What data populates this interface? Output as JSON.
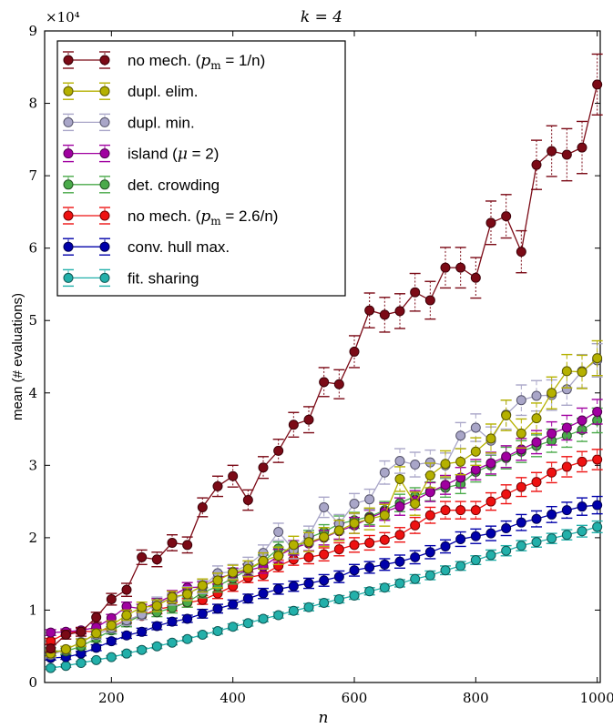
{
  "chart_data": {
    "type": "line",
    "title": "k = 4",
    "xlabel": "n",
    "ylabel": "mean (# evaluations)",
    "y_multiplier": "×10⁴",
    "xlim": [
      90,
      1005
    ],
    "ylim": [
      0,
      90000
    ],
    "x_ticks": [
      200,
      400,
      600,
      800,
      1000
    ],
    "y_ticks": [
      0,
      1,
      2,
      3,
      4,
      5,
      6,
      7,
      8,
      9
    ],
    "grid": false,
    "legend_position": "top-left",
    "x": [
      100,
      125,
      150,
      175,
      200,
      225,
      250,
      275,
      300,
      325,
      350,
      375,
      400,
      425,
      450,
      475,
      500,
      525,
      550,
      575,
      600,
      625,
      650,
      675,
      700,
      725,
      750,
      775,
      800,
      825,
      850,
      875,
      900,
      925,
      950,
      975,
      1000
    ],
    "series": [
      {
        "name": "no mech. (p_m = 1/n)",
        "legend_prefix": "no mech. (",
        "legend_math": "p",
        "legend_sub": "m",
        "legend_suffix": " = 1/n)",
        "color": "#7b0a16",
        "marker_edge": "#3d0008",
        "errbar": "dotted",
        "values": [
          4700,
          6600,
          7000,
          9000,
          11500,
          12800,
          17300,
          17000,
          19300,
          19000,
          24200,
          27100,
          28500,
          25200,
          29700,
          32000,
          35600,
          36300,
          41500,
          41200,
          45700,
          51400,
          50800,
          51300,
          53900,
          52800,
          57300,
          57300,
          55900,
          63500,
          64400,
          59500,
          71500,
          73400,
          72900,
          73900,
          82600
        ],
        "errors": [
          500,
          600,
          600,
          700,
          800,
          900,
          1000,
          1000,
          1100,
          1100,
          1300,
          1400,
          1500,
          1400,
          1500,
          1600,
          1700,
          1800,
          2000,
          2000,
          2200,
          2400,
          2400,
          2400,
          2600,
          2600,
          2800,
          2800,
          2800,
          3000,
          3000,
          2900,
          3400,
          3500,
          3600,
          3600,
          4200
        ]
      },
      {
        "name": "dupl. elim.",
        "legend_prefix": "dupl. elim.",
        "color": "#b5b100",
        "marker_edge": "#5a5800",
        "errbar": "dashed",
        "values": [
          4000,
          4600,
          5500,
          6800,
          7900,
          9300,
          10400,
          10600,
          11800,
          12200,
          13400,
          14100,
          15200,
          15700,
          16800,
          17500,
          19000,
          19400,
          20100,
          21000,
          22000,
          22600,
          23100,
          28100,
          24700,
          28600,
          30200,
          30500,
          31900,
          33700,
          36900,
          34400,
          36500,
          40000,
          43000,
          42900,
          44800
        ],
        "errors": [
          400,
          400,
          500,
          500,
          600,
          700,
          700,
          800,
          800,
          900,
          900,
          1000,
          1000,
          1100,
          1100,
          1200,
          1200,
          1300,
          1300,
          1400,
          1400,
          1500,
          1500,
          1700,
          1600,
          1700,
          1800,
          1800,
          1900,
          2000,
          2100,
          2000,
          2100,
          2200,
          2300,
          2300,
          2400
        ]
      },
      {
        "name": "dupl. min.",
        "legend_prefix": "dupl. min.",
        "color": "#a9a6c8",
        "marker_edge": "#55536a",
        "errbar": "dashed",
        "values": [
          3800,
          4500,
          5600,
          6600,
          7500,
          8600,
          9400,
          11000,
          11500,
          12300,
          13200,
          15100,
          15300,
          16200,
          17900,
          20800,
          18300,
          20300,
          24200,
          21900,
          24700,
          25300,
          29000,
          30600,
          30100,
          30400,
          30000,
          34100,
          35200,
          33400,
          37000,
          39000,
          39600,
          39700,
          40500,
          43000,
          44500
        ],
        "errors": [
          400,
          400,
          500,
          600,
          600,
          700,
          700,
          800,
          800,
          900,
          900,
          1000,
          1000,
          1100,
          1100,
          1200,
          1200,
          1300,
          1400,
          1300,
          1400,
          1400,
          1600,
          1700,
          1700,
          1700,
          1700,
          1800,
          1900,
          1900,
          2000,
          2100,
          2100,
          2100,
          2200,
          2300,
          2300
        ]
      },
      {
        "name": "island (μ = 2)",
        "legend_prefix": "island (",
        "legend_math": "μ",
        "legend_suffix": " = 2)",
        "color": "#a000a0",
        "marker_edge": "#500050",
        "errbar": "dashed",
        "values": [
          6900,
          7000,
          7200,
          7600,
          8900,
          10500,
          10200,
          11000,
          12000,
          13100,
          13200,
          14400,
          15000,
          15500,
          16000,
          17500,
          18600,
          19200,
          20000,
          20900,
          21700,
          22700,
          23600,
          24300,
          25200,
          26300,
          27300,
          28300,
          29400,
          30300,
          31200,
          32200,
          33200,
          34400,
          35200,
          36200,
          37400
        ],
        "errors": [
          400,
          400,
          400,
          500,
          500,
          600,
          600,
          600,
          700,
          700,
          700,
          800,
          800,
          800,
          900,
          900,
          1000,
          1000,
          1000,
          1100,
          1100,
          1100,
          1200,
          1200,
          1300,
          1300,
          1300,
          1400,
          1400,
          1500,
          1500,
          1500,
          1600,
          1600,
          1700,
          1700,
          1700
        ]
      },
      {
        "name": "det. crowding",
        "legend_prefix": "det. crowding",
        "color": "#4aaa4a",
        "marker_edge": "#235523",
        "errbar": "dashed",
        "values": [
          4400,
          4300,
          5000,
          6100,
          7200,
          8300,
          9300,
          9700,
          10300,
          11100,
          12400,
          13300,
          14400,
          15600,
          16700,
          18500,
          18100,
          20000,
          20800,
          21900,
          22400,
          22900,
          23800,
          24800,
          25700,
          26400,
          26900,
          27400,
          29100,
          30000,
          31000,
          31900,
          32700,
          33400,
          34100,
          34900,
          36200
        ],
        "errors": [
          400,
          400,
          400,
          500,
          500,
          600,
          600,
          600,
          700,
          700,
          700,
          800,
          800,
          800,
          900,
          900,
          1000,
          1000,
          1000,
          1100,
          1100,
          1100,
          1200,
          1200,
          1200,
          1300,
          1300,
          1300,
          1400,
          1400,
          1500,
          1500,
          1500,
          1600,
          1600,
          1600,
          1700
        ]
      },
      {
        "name": "no mech. (p_m = 2.6/n)",
        "legend_prefix": "no mech. (",
        "legend_math": "p",
        "legend_sub": "m",
        "legend_suffix": " = 2.6/n)",
        "color": "#ee1111",
        "marker_edge": "#770000",
        "errbar": "dashed",
        "values": [
          5700,
          6800,
          7100,
          7000,
          7600,
          8700,
          9200,
          10100,
          10500,
          11000,
          11400,
          12300,
          13300,
          14500,
          14900,
          16100,
          17000,
          17300,
          17700,
          18400,
          19000,
          19300,
          19700,
          20400,
          21700,
          23100,
          23800,
          23800,
          23800,
          25000,
          26000,
          27000,
          27700,
          29000,
          29800,
          30500,
          30800
        ],
        "errors": [
          400,
          400,
          400,
          400,
          500,
          500,
          500,
          600,
          600,
          600,
          600,
          700,
          700,
          700,
          800,
          800,
          800,
          900,
          900,
          900,
          1000,
          1000,
          1000,
          1000,
          1100,
          1100,
          1200,
          1200,
          1200,
          1200,
          1300,
          1300,
          1300,
          1400,
          1400,
          1400,
          1400
        ]
      },
      {
        "name": "conv. hull max.",
        "legend_prefix": "conv. hull max.",
        "color": "#0000aa",
        "marker_edge": "#000055",
        "errbar": "dashed",
        "values": [
          3400,
          3500,
          4000,
          4800,
          5700,
          6500,
          7000,
          7800,
          8400,
          8800,
          9500,
          10200,
          10800,
          11600,
          12300,
          12900,
          13300,
          13700,
          14100,
          14600,
          15500,
          15900,
          16300,
          16700,
          17300,
          18000,
          18800,
          19800,
          20200,
          20600,
          21300,
          22100,
          22600,
          23200,
          23800,
          24300,
          24500
        ],
        "errors": [
          300,
          300,
          300,
          400,
          400,
          400,
          500,
          500,
          500,
          500,
          600,
          600,
          600,
          600,
          700,
          700,
          700,
          700,
          800,
          800,
          800,
          800,
          800,
          900,
          900,
          900,
          900,
          1000,
          1000,
          1000,
          1000,
          1100,
          1100,
          1100,
          1100,
          1200,
          1200
        ]
      },
      {
        "name": "fit. sharing",
        "legend_prefix": "fit. sharing",
        "color": "#22b0aa",
        "marker_edge": "#105855",
        "errbar": "dashed",
        "values": [
          2000,
          2300,
          2700,
          3100,
          3500,
          4000,
          4500,
          5000,
          5500,
          6000,
          6600,
          7100,
          7700,
          8200,
          8800,
          9300,
          9900,
          10400,
          11000,
          11500,
          12000,
          12600,
          13100,
          13700,
          14300,
          14800,
          15500,
          16100,
          16900,
          17600,
          18200,
          18900,
          19400,
          19900,
          20400,
          20900,
          21500
        ],
        "errors": [
          200,
          200,
          200,
          200,
          200,
          300,
          300,
          300,
          300,
          300,
          300,
          400,
          400,
          400,
          400,
          400,
          500,
          500,
          500,
          500,
          500,
          500,
          500,
          500,
          600,
          600,
          600,
          600,
          600,
          700,
          700,
          700,
          700,
          700,
          700,
          800,
          800
        ]
      }
    ]
  }
}
